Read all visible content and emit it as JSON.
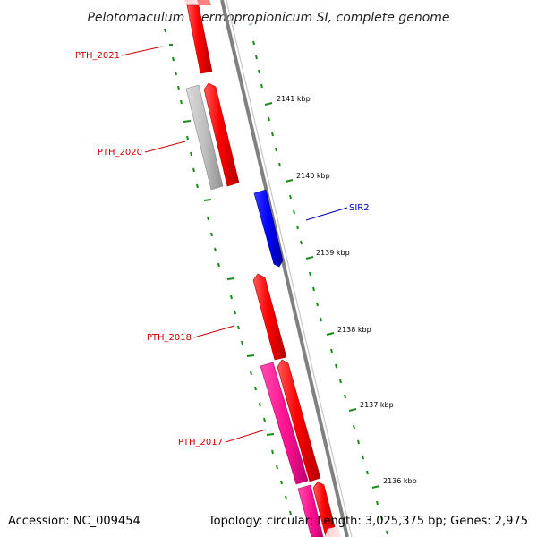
{
  "title": "Pelotomaculum thermopropionicum SI, complete genome",
  "accession": "Accession: NC_009454",
  "summary": "Topology: circular; Length: 3,025,375 bp; Genes: 2,975",
  "colors": {
    "red": "#ff0000",
    "grey": "#c0c0c0",
    "blue": "#0000ff",
    "pink": "#ff1493",
    "label_red": "#cc0000",
    "label_blue": "#0000aa",
    "tick_green": "#1a8a1a",
    "backbone": "#808080"
  },
  "genes": {
    "pth2021": "PTH_2021",
    "pth2020": "PTH_2020",
    "sir2": "SIR2",
    "pth2018": "PTH_2018",
    "pth2017": "PTH_2017"
  },
  "ticks": {
    "t2141": "2141 kbp",
    "t2140": "2140 kbp",
    "t2139": "2139 kbp",
    "t2138": "2138 kbp",
    "t2137": "2137 kbp",
    "t2136": "2136 kbp"
  }
}
